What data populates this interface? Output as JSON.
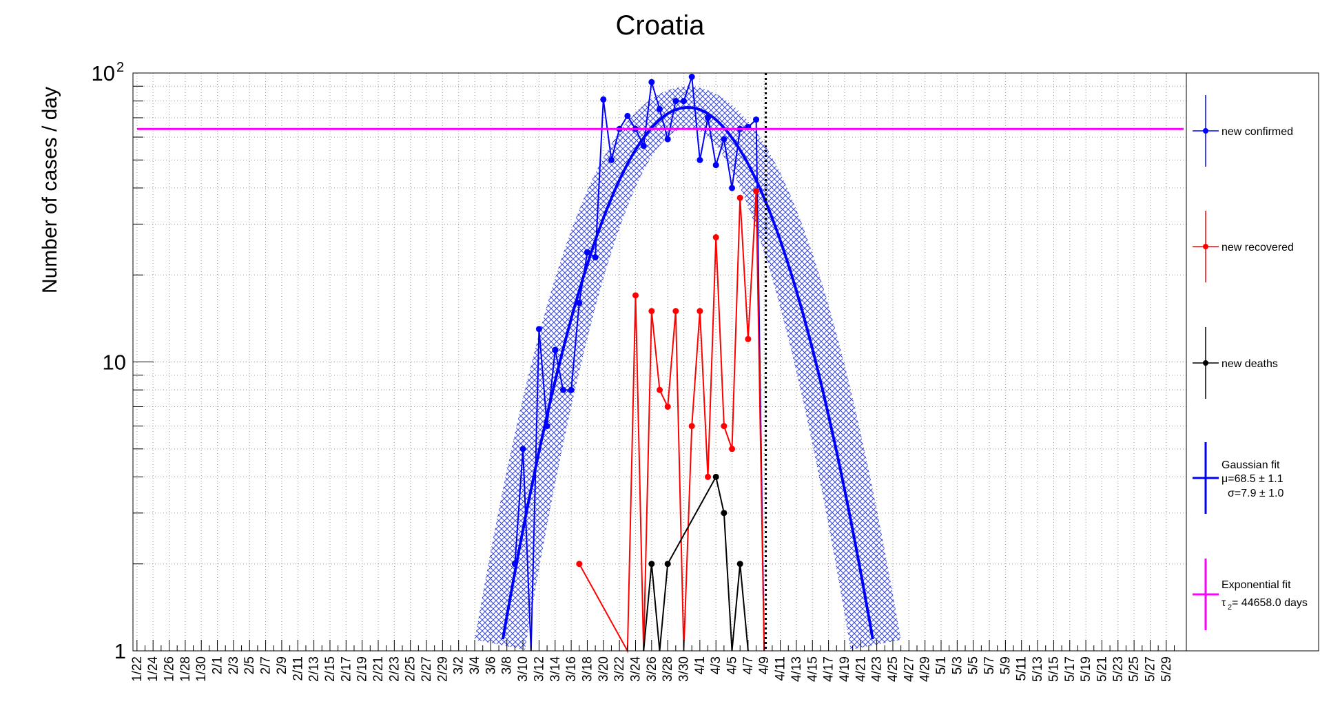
{
  "chart_data": {
    "type": "line",
    "title": "Croatia",
    "ylabel": "Number of cases / day",
    "xlabel": "",
    "y_scale": "log",
    "ylim": [
      1,
      100
    ],
    "y_ticks": [
      {
        "value": 1,
        "label": "1",
        "sup": ""
      },
      {
        "value": 10,
        "label": "10",
        "sup": ""
      },
      {
        "value": 100,
        "label": "10",
        "sup": "2"
      }
    ],
    "grid": true,
    "legend_position": "right",
    "x_tick_labels": [
      "1/22",
      "1/24",
      "1/26",
      "1/28",
      "1/30",
      "2/1",
      "2/3",
      "2/5",
      "2/7",
      "2/9",
      "2/11",
      "2/13",
      "2/15",
      "2/17",
      "2/19",
      "2/21",
      "2/23",
      "2/25",
      "2/27",
      "2/29",
      "3/2",
      "3/4",
      "3/6",
      "3/8",
      "3/10",
      "3/12",
      "3/14",
      "3/16",
      "3/18",
      "3/20",
      "3/22",
      "3/24",
      "3/26",
      "3/28",
      "3/30",
      "4/1",
      "4/3",
      "4/5",
      "4/7",
      "4/9",
      "4/11",
      "4/13",
      "4/15",
      "4/17",
      "4/19",
      "4/21",
      "4/23",
      "4/25",
      "4/27",
      "4/29",
      "5/1",
      "5/3",
      "5/5",
      "5/7",
      "5/9",
      "5/11",
      "5/13",
      "5/15",
      "5/17",
      "5/19",
      "5/21",
      "5/23",
      "5/25",
      "5/27",
      "5/29"
    ],
    "x_tick_values": [
      0,
      2,
      4,
      6,
      8,
      10,
      12,
      14,
      16,
      18,
      20,
      22,
      24,
      26,
      28,
      30,
      32,
      34,
      36,
      38,
      40,
      42,
      44,
      46,
      48,
      50,
      52,
      54,
      56,
      58,
      60,
      62,
      64,
      66,
      68,
      70,
      72,
      74,
      76,
      78,
      80,
      82,
      84,
      86,
      88,
      90,
      92,
      94,
      96,
      98,
      100,
      102,
      104,
      106,
      108,
      110,
      112,
      114,
      116,
      118,
      120,
      122,
      124,
      126,
      128
    ],
    "xlim": [
      -0.5,
      130.5
    ],
    "marker_day": 78.2,
    "series": [
      {
        "name": "new confirmed",
        "color": "#0000ff",
        "x": [
          47,
          48,
          49,
          50,
          51,
          52,
          53,
          54,
          55,
          56,
          57,
          58,
          59,
          60,
          61,
          62,
          63,
          64,
          65,
          66,
          67,
          68,
          69,
          70,
          71,
          72,
          73,
          74,
          75,
          76,
          77,
          78
        ],
        "y": [
          2,
          5,
          0,
          13,
          6,
          11,
          8,
          8,
          16,
          24,
          23,
          81,
          50,
          64,
          71,
          64,
          56,
          93,
          75,
          59,
          80,
          80,
          97,
          50,
          70,
          48,
          59,
          40,
          64,
          65,
          69,
          0
        ]
      },
      {
        "name": "new recovered",
        "color": "#ff0000",
        "x": [
          55,
          61,
          62,
          63,
          64,
          65,
          66,
          67,
          68,
          69,
          70,
          71,
          72,
          73,
          74,
          75,
          76,
          77,
          78
        ],
        "y": [
          2,
          0,
          17,
          0,
          15,
          8,
          7,
          15,
          0,
          6,
          15,
          4,
          27,
          6,
          5,
          37,
          12,
          39,
          0
        ]
      },
      {
        "name": "new deaths",
        "color": "#000000",
        "x": [
          63,
          64,
          65,
          66,
          72,
          73,
          74,
          75,
          76
        ],
        "y": [
          0,
          2,
          0,
          2,
          4,
          3,
          0,
          2,
          0
        ]
      }
    ],
    "fits": [
      {
        "name": "Gaussian fit",
        "line1": "μ=68.5 ± 1.1",
        "line2": "σ=7.9 ± 1.0",
        "mu": 68.5,
        "sigma": 7.9,
        "color": "#0000ff"
      },
      {
        "name": "Exponential fit",
        "line1_symbol": "τ",
        "line1_sub": "2",
        "line1_text": " = 44658.0 days",
        "color": "#ff00ff",
        "level": 64
      }
    ]
  }
}
